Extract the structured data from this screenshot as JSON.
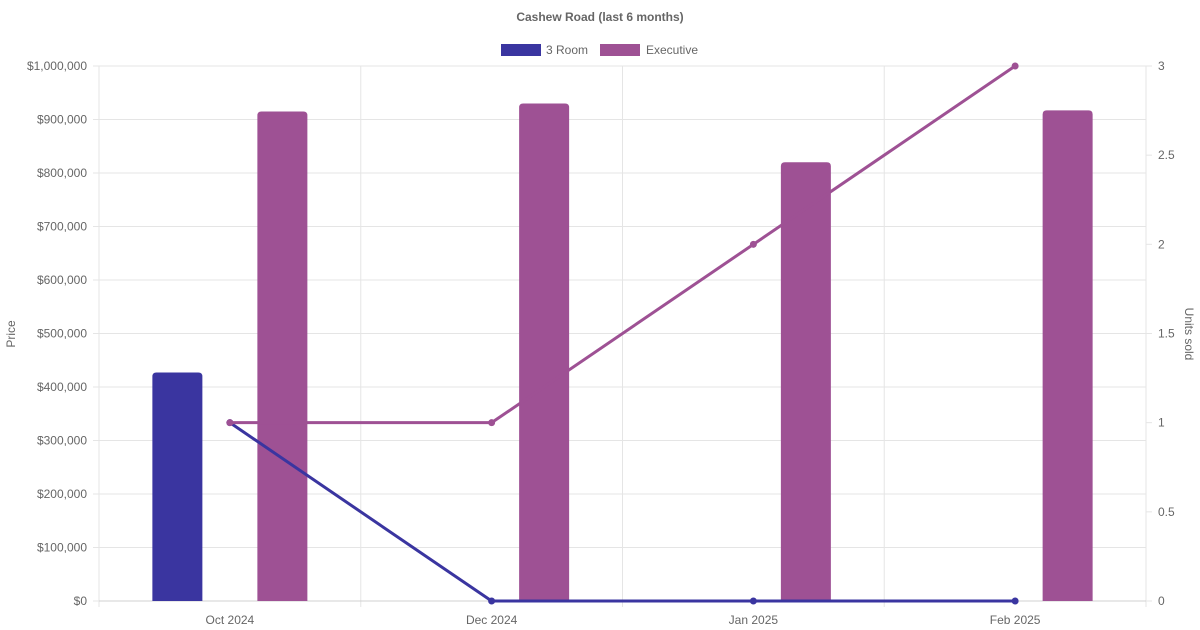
{
  "chart_data": {
    "type": "bar",
    "title": "Cashew Road (last 6 months)",
    "categories": [
      "Oct 2024",
      "Dec 2024",
      "Jan 2025",
      "Feb 2025"
    ],
    "y_left": {
      "label": "Price",
      "range": [
        0,
        1000000
      ],
      "ticks": [
        "$0",
        "$100,000",
        "$200,000",
        "$300,000",
        "$400,000",
        "$500,000",
        "$600,000",
        "$700,000",
        "$800,000",
        "$900,000",
        "$1,000,000"
      ]
    },
    "y_right": {
      "label": "Units sold",
      "range": [
        0,
        3
      ],
      "ticks": [
        "0",
        "0.5",
        "1",
        "1.5",
        "2",
        "2.5",
        "3"
      ]
    },
    "legend_position": "top",
    "grid": true,
    "series": [
      {
        "name": "3 Room",
        "color": "#3a35a0",
        "price": [
          427000,
          null,
          null,
          null
        ],
        "units": [
          1,
          0,
          0,
          0
        ]
      },
      {
        "name": "Executive",
        "color": "#9e5194",
        "price": [
          915000,
          930000,
          820000,
          917000
        ],
        "units": [
          1,
          1,
          2,
          3
        ]
      }
    ]
  }
}
